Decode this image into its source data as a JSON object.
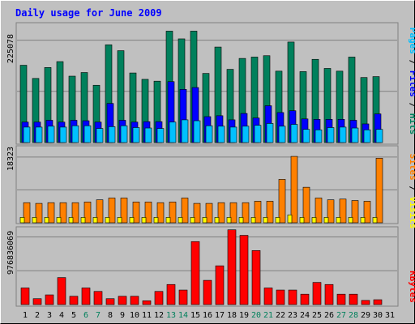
{
  "title": "Daily usage for June 2009",
  "colors": {
    "background": "#c0c0c0",
    "title": "#0000ff",
    "hits": "#00805c",
    "files": "#0000ff",
    "pages": "#00c0ff",
    "visits": "#ffff00",
    "sites": "#ff8000",
    "kbytes": "#ff0000",
    "weekend_day_label": "#00805c"
  },
  "chart_data": [
    {
      "type": "bar",
      "name": "hits-files-pages",
      "y_label_parts": [
        "Pages",
        "Files",
        "Hits"
      ],
      "y_tick_label": "225078",
      "y_tick_value": 225078,
      "ylim": [
        0,
        260000
      ],
      "x": [
        1,
        2,
        3,
        4,
        5,
        6,
        7,
        8,
        9,
        10,
        11,
        12,
        13,
        14,
        15,
        16,
        17,
        18,
        19,
        20,
        21,
        22,
        23,
        24,
        25,
        26,
        27,
        28,
        29,
        30,
        31
      ],
      "series": [
        {
          "name": "Hits",
          "values": [
            170000,
            141000,
            165000,
            178000,
            146000,
            154000,
            126000,
            215000,
            202000,
            153000,
            139000,
            135000,
            245000,
            228000,
            245000,
            152000,
            210000,
            161000,
            185000,
            188000,
            191000,
            157000,
            221000,
            156000,
            183000,
            163000,
            157000,
            188000,
            143000,
            145000,
            0
          ]
        },
        {
          "name": "Files",
          "values": [
            45000,
            45000,
            49000,
            45000,
            49000,
            48000,
            45000,
            86000,
            49000,
            45000,
            46000,
            46000,
            134000,
            117000,
            121000,
            57000,
            59000,
            50000,
            64000,
            54000,
            81000,
            66000,
            70000,
            52000,
            51000,
            51000,
            51000,
            49000,
            41000,
            63000,
            0
          ]
        },
        {
          "name": "Pages",
          "values": [
            34000,
            34000,
            36000,
            34000,
            37000,
            37000,
            31000,
            35000,
            37000,
            33000,
            32000,
            31000,
            45000,
            50000,
            48000,
            37000,
            36000,
            34000,
            36000,
            38000,
            42000,
            36000,
            40000,
            29000,
            28000,
            33000,
            34000,
            32000,
            28000,
            29000,
            0
          ]
        }
      ]
    },
    {
      "type": "bar",
      "name": "visits-sites",
      "y_label_parts": [
        "Sites",
        "Visits"
      ],
      "y_tick_label": "18323",
      "y_tick_value": 18323,
      "ylim": [
        0,
        21000
      ],
      "x": [
        1,
        2,
        3,
        4,
        5,
        6,
        7,
        8,
        9,
        10,
        11,
        12,
        13,
        14,
        15,
        16,
        17,
        18,
        19,
        20,
        21,
        22,
        23,
        24,
        25,
        26,
        27,
        28,
        29,
        30,
        31
      ],
      "series": [
        {
          "name": "Visits",
          "values": [
            1500,
            1500,
            1500,
            1500,
            1500,
            1500,
            1500,
            1500,
            1500,
            1500,
            1500,
            1500,
            1500,
            1500,
            1500,
            1500,
            1500,
            1500,
            1500,
            1500,
            1500,
            1500,
            2200,
            1500,
            1500,
            1500,
            1500,
            1500,
            1500,
            1500,
            0
          ]
        },
        {
          "name": "Sites",
          "values": [
            5600,
            5400,
            5600,
            5600,
            5600,
            5800,
            6400,
            6900,
            6900,
            5800,
            5800,
            5600,
            5800,
            6900,
            5400,
            5400,
            5600,
            5600,
            5600,
            6000,
            6000,
            12100,
            18500,
            9900,
            6900,
            6400,
            6600,
            6200,
            6000,
            18000,
            0
          ]
        }
      ]
    },
    {
      "type": "bar",
      "name": "kbytes",
      "y_label_parts": [
        "KBytes"
      ],
      "y_tick_label": "976836069",
      "y_tick_value": 976836069,
      "ylim": [
        0,
        1100000000
      ],
      "x": [
        1,
        2,
        3,
        4,
        5,
        6,
        7,
        8,
        9,
        10,
        11,
        12,
        13,
        14,
        15,
        16,
        17,
        18,
        19,
        20,
        21,
        22,
        23,
        24,
        25,
        26,
        27,
        28,
        29,
        30,
        31
      ],
      "x_tick_labels": [
        "1",
        "2",
        "3",
        "4",
        "5",
        "6",
        "7",
        "8",
        "9",
        "10",
        "11",
        "12",
        "13",
        "14",
        "15",
        "16",
        "17",
        "18",
        "19",
        "20",
        "21",
        "22",
        "23",
        "24",
        "25",
        "26",
        "27",
        "28",
        "29",
        "30",
        "31"
      ],
      "weekend_days": [
        6,
        7,
        13,
        14,
        20,
        21,
        27,
        28
      ],
      "series": [
        {
          "name": "KBytes",
          "values": [
            240000000,
            85000000,
            140000000,
            390000000,
            120000000,
            240000000,
            190000000,
            85000000,
            120000000,
            120000000,
            55000000,
            190000000,
            290000000,
            210000000,
            910000000,
            350000000,
            560000000,
            1080000000,
            1000000000,
            780000000,
            240000000,
            210000000,
            210000000,
            150000000,
            320000000,
            290000000,
            150000000,
            150000000,
            60000000,
            70000000,
            0
          ]
        }
      ]
    }
  ]
}
